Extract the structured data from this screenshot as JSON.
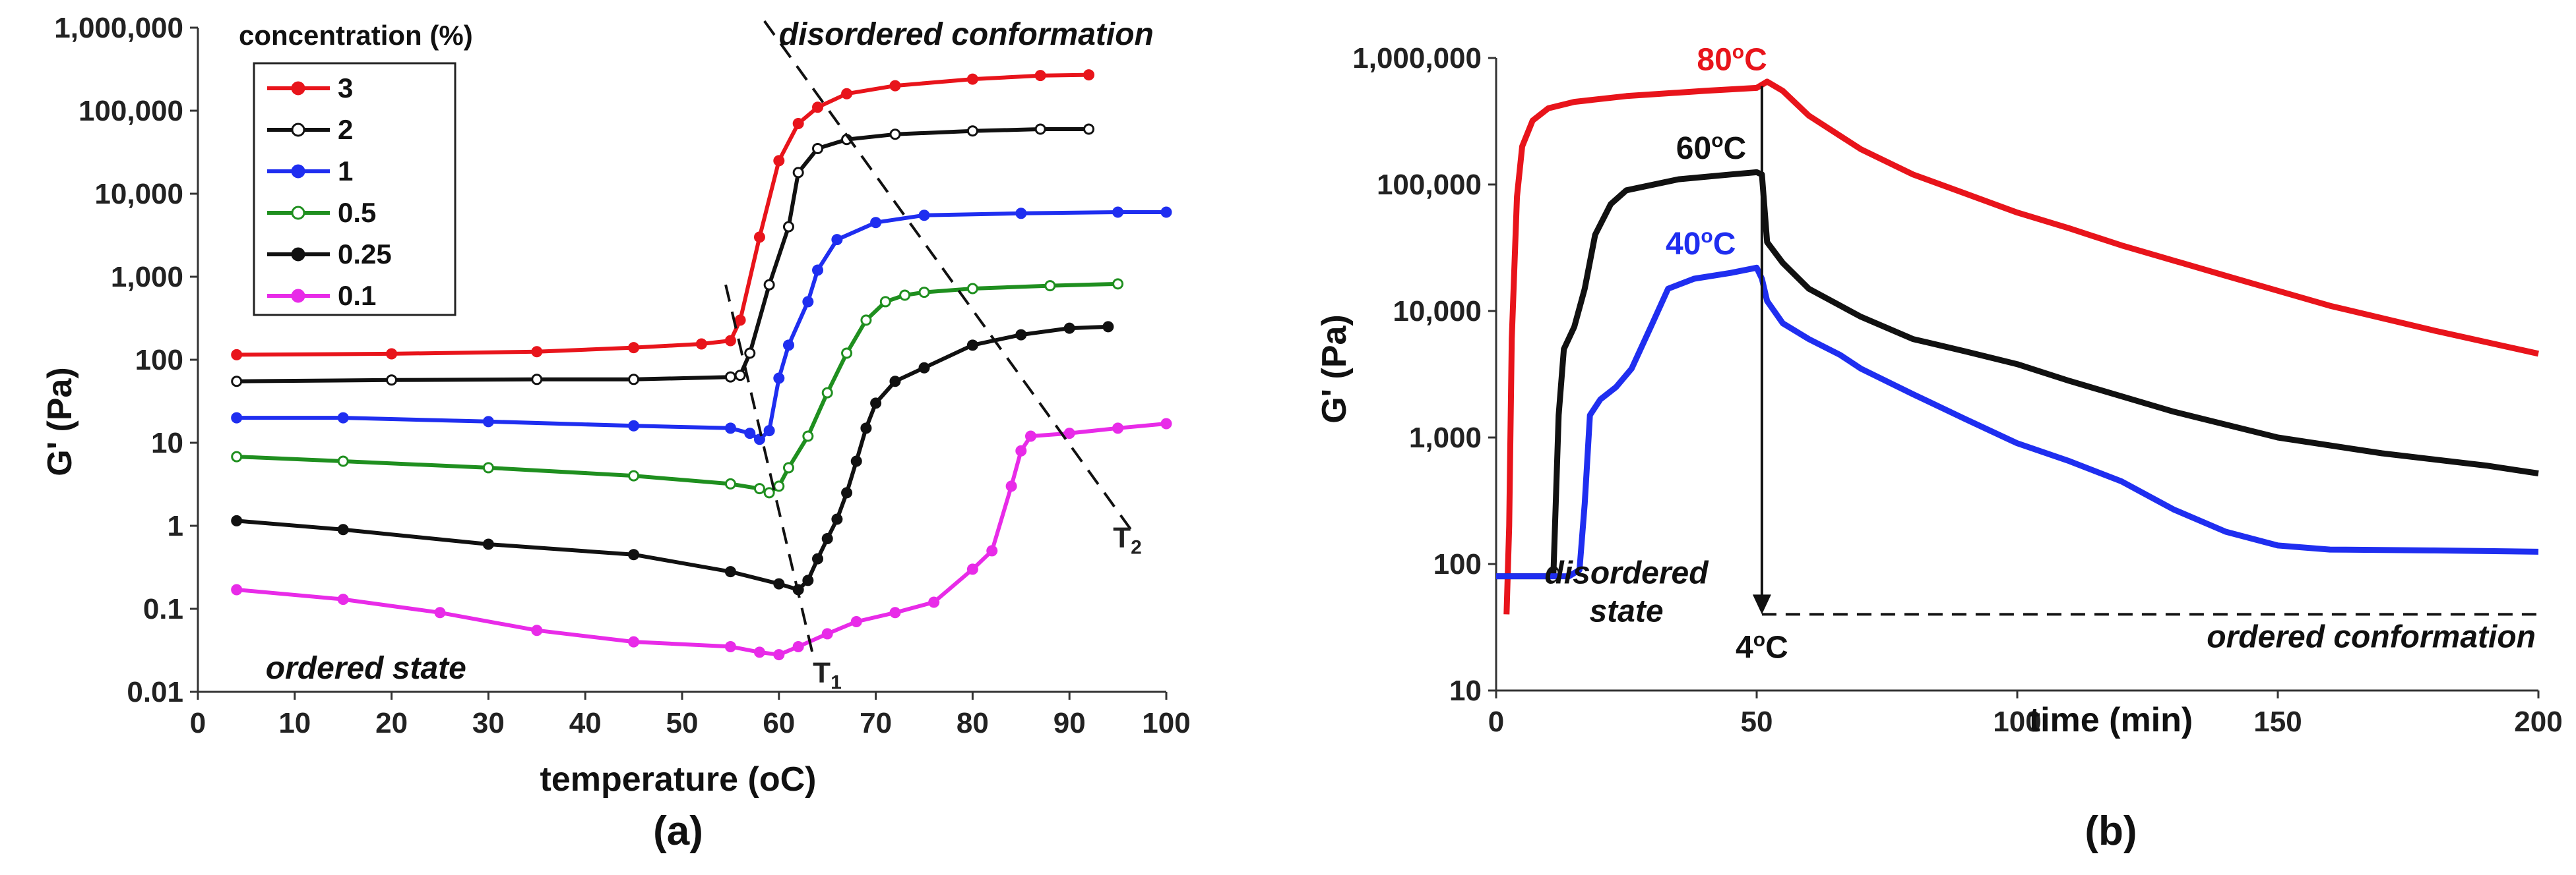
{
  "chart_data": [
    {
      "type": "line",
      "panel_label": "(a)",
      "xlabel": "temperature (oC)",
      "ylabel": "G' (Pa)",
      "xlim": [
        0,
        100
      ],
      "ylim": [
        0.01,
        1000000
      ],
      "yscale": "log",
      "x_ticks": [
        "0",
        "10",
        "20",
        "30",
        "40",
        "50",
        "60",
        "70",
        "80",
        "90",
        "100"
      ],
      "y_ticks": [
        "0.01",
        "0.1",
        "1",
        "10",
        "100",
        "1,000",
        "10,000",
        "100,000",
        "1,000,000"
      ],
      "legend_title": "concentration (%)",
      "annotations": {
        "disordered": "disordered conformation",
        "ordered": "ordered state",
        "t1": "T",
        "t1_sub": "1",
        "t2": "T",
        "t2_sub": "2"
      },
      "series": [
        {
          "name": "3",
          "color": "#e8141b",
          "marker": "filled",
          "points": [
            [
              4,
              115
            ],
            [
              20,
              118
            ],
            [
              35,
              125
            ],
            [
              45,
              140
            ],
            [
              52,
              155
            ],
            [
              55,
              170
            ],
            [
              56,
              300
            ],
            [
              58,
              3000
            ],
            [
              60,
              25000
            ],
            [
              62,
              70000
            ],
            [
              64,
              110000
            ],
            [
              67,
              160000
            ],
            [
              72,
              200000
            ],
            [
              80,
              240000
            ],
            [
              87,
              265000
            ],
            [
              92,
              270000
            ]
          ]
        },
        {
          "name": "2",
          "color": "#111111",
          "marker": "open",
          "points": [
            [
              4,
              55
            ],
            [
              20,
              57
            ],
            [
              35,
              58
            ],
            [
              45,
              58
            ],
            [
              55,
              62
            ],
            [
              56,
              65
            ],
            [
              57,
              120
            ],
            [
              59,
              800
            ],
            [
              61,
              4000
            ],
            [
              62,
              18000
            ],
            [
              64,
              35000
            ],
            [
              67,
              45000
            ],
            [
              72,
              52000
            ],
            [
              80,
              57000
            ],
            [
              87,
              60000
            ],
            [
              92,
              60000
            ]
          ]
        },
        {
          "name": "1",
          "color": "#1f2ef0",
          "marker": "filled",
          "points": [
            [
              4,
              20
            ],
            [
              15,
              20
            ],
            [
              30,
              18
            ],
            [
              45,
              16
            ],
            [
              55,
              15
            ],
            [
              57,
              13
            ],
            [
              58,
              11
            ],
            [
              59,
              14
            ],
            [
              60,
              60
            ],
            [
              61,
              150
            ],
            [
              63,
              500
            ],
            [
              64,
              1200
            ],
            [
              66,
              2800
            ],
            [
              70,
              4500
            ],
            [
              75,
              5500
            ],
            [
              85,
              5800
            ],
            [
              95,
              6000
            ],
            [
              100,
              6000
            ]
          ]
        },
        {
          "name": "0.5",
          "color": "#1f8f1f",
          "marker": "open",
          "points": [
            [
              4,
              6.8
            ],
            [
              15,
              6
            ],
            [
              30,
              5
            ],
            [
              45,
              4
            ],
            [
              55,
              3.2
            ],
            [
              58,
              2.8
            ],
            [
              59,
              2.5
            ],
            [
              60,
              3
            ],
            [
              61,
              5
            ],
            [
              63,
              12
            ],
            [
              65,
              40
            ],
            [
              67,
              120
            ],
            [
              69,
              300
            ],
            [
              71,
              500
            ],
            [
              73,
              600
            ],
            [
              75,
              650
            ],
            [
              80,
              720
            ],
            [
              88,
              780
            ],
            [
              95,
              820
            ]
          ]
        },
        {
          "name": "0.25",
          "color": "#111111",
          "marker": "filled",
          "points": [
            [
              4,
              1.15
            ],
            [
              15,
              0.9
            ],
            [
              30,
              0.6
            ],
            [
              45,
              0.45
            ],
            [
              55,
              0.28
            ],
            [
              60,
              0.2
            ],
            [
              62,
              0.17
            ],
            [
              63,
              0.22
            ],
            [
              64,
              0.4
            ],
            [
              65,
              0.7
            ],
            [
              66,
              1.2
            ],
            [
              67,
              2.5
            ],
            [
              68,
              6
            ],
            [
              69,
              15
            ],
            [
              70,
              30
            ],
            [
              72,
              55
            ],
            [
              75,
              80
            ],
            [
              80,
              150
            ],
            [
              85,
              200
            ],
            [
              90,
              240
            ],
            [
              94,
              250
            ]
          ]
        },
        {
          "name": "0.1",
          "color": "#e82be8",
          "marker": "filled",
          "points": [
            [
              4,
              0.17
            ],
            [
              15,
              0.13
            ],
            [
              25,
              0.09
            ],
            [
              35,
              0.055
            ],
            [
              45,
              0.04
            ],
            [
              55,
              0.035
            ],
            [
              58,
              0.03
            ],
            [
              60,
              0.028
            ],
            [
              62,
              0.035
            ],
            [
              65,
              0.05
            ],
            [
              68,
              0.07
            ],
            [
              72,
              0.09
            ],
            [
              76,
              0.12
            ],
            [
              80,
              0.3
            ],
            [
              82,
              0.5
            ],
            [
              84,
              3
            ],
            [
              85,
              8
            ],
            [
              86,
              12
            ],
            [
              90,
              13
            ],
            [
              95,
              15
            ],
            [
              100,
              17
            ]
          ]
        }
      ]
    },
    {
      "type": "line",
      "panel_label": "(b)",
      "xlabel": "time (min)",
      "ylabel": "G' (Pa)",
      "xlim": [
        0,
        200
      ],
      "ylim": [
        10,
        1000000
      ],
      "yscale": "log",
      "x_ticks": [
        "0",
        "50",
        "100",
        "150",
        "200"
      ],
      "y_ticks": [
        "10",
        "100",
        "1,000",
        "10,000",
        "100,000",
        "1,000,000"
      ],
      "annotations": {
        "disordered_line1": "disordered",
        "disordered_line2": "state",
        "ordered": "ordered conformation",
        "cool_label": "4",
        "cool_sup": "o",
        "cool_unit": "C",
        "cool_arrow_x": 51,
        "cool_target_y": 40
      },
      "series": [
        {
          "name": "80",
          "label_sup": "o",
          "label_unit": "C",
          "color": "#e8141b",
          "points": [
            [
              2,
              40
            ],
            [
              2.5,
              200
            ],
            [
              3,
              6000
            ],
            [
              4,
              80000
            ],
            [
              5,
              200000
            ],
            [
              7,
              320000
            ],
            [
              10,
              400000
            ],
            [
              15,
              450000
            ],
            [
              25,
              500000
            ],
            [
              40,
              550000
            ],
            [
              50,
              580000
            ],
            [
              52,
              650000
            ],
            [
              55,
              550000
            ],
            [
              60,
              350000
            ],
            [
              70,
              190000
            ],
            [
              80,
              120000
            ],
            [
              90,
              85000
            ],
            [
              100,
              60000
            ],
            [
              110,
              45000
            ],
            [
              120,
              33000
            ],
            [
              140,
              19000
            ],
            [
              160,
              11000
            ],
            [
              180,
              7000
            ],
            [
              200,
              4600
            ]
          ]
        },
        {
          "name": "60",
          "label_sup": "o",
          "label_unit": "C",
          "color": "#111111",
          "points": [
            [
              0,
              80
            ],
            [
              10,
              80
            ],
            [
              11,
              85
            ],
            [
              12,
              1500
            ],
            [
              13,
              5000
            ],
            [
              15,
              7500
            ],
            [
              17,
              15000
            ],
            [
              19,
              40000
            ],
            [
              22,
              70000
            ],
            [
              25,
              90000
            ],
            [
              35,
              110000
            ],
            [
              45,
              120000
            ],
            [
              50,
              125000
            ],
            [
              51,
              120000
            ],
            [
              52,
              35000
            ],
            [
              55,
              24000
            ],
            [
              60,
              15000
            ],
            [
              70,
              9000
            ],
            [
              80,
              6000
            ],
            [
              90,
              4800
            ],
            [
              100,
              3800
            ],
            [
              110,
              2800
            ],
            [
              130,
              1600
            ],
            [
              150,
              1000
            ],
            [
              170,
              750
            ],
            [
              190,
              600
            ],
            [
              200,
              520
            ]
          ]
        },
        {
          "name": "40",
          "label_sup": "o",
          "label_unit": "C",
          "color": "#1f2ef0",
          "points": [
            [
              0,
              80
            ],
            [
              14,
              80
            ],
            [
              16,
              90
            ],
            [
              17,
              300
            ],
            [
              18,
              1500
            ],
            [
              20,
              2000
            ],
            [
              23,
              2500
            ],
            [
              26,
              3500
            ],
            [
              30,
              8000
            ],
            [
              33,
              15000
            ],
            [
              38,
              18000
            ],
            [
              45,
              20000
            ],
            [
              50,
              22000
            ],
            [
              51,
              18000
            ],
            [
              52,
              12000
            ],
            [
              55,
              8000
            ],
            [
              60,
              6000
            ],
            [
              66,
              4500
            ],
            [
              70,
              3500
            ],
            [
              80,
              2200
            ],
            [
              90,
              1400
            ],
            [
              100,
              900
            ],
            [
              110,
              650
            ],
            [
              120,
              450
            ],
            [
              130,
              270
            ],
            [
              140,
              180
            ],
            [
              150,
              140
            ],
            [
              160,
              130
            ],
            [
              180,
              128
            ],
            [
              200,
              125
            ]
          ]
        }
      ]
    }
  ]
}
